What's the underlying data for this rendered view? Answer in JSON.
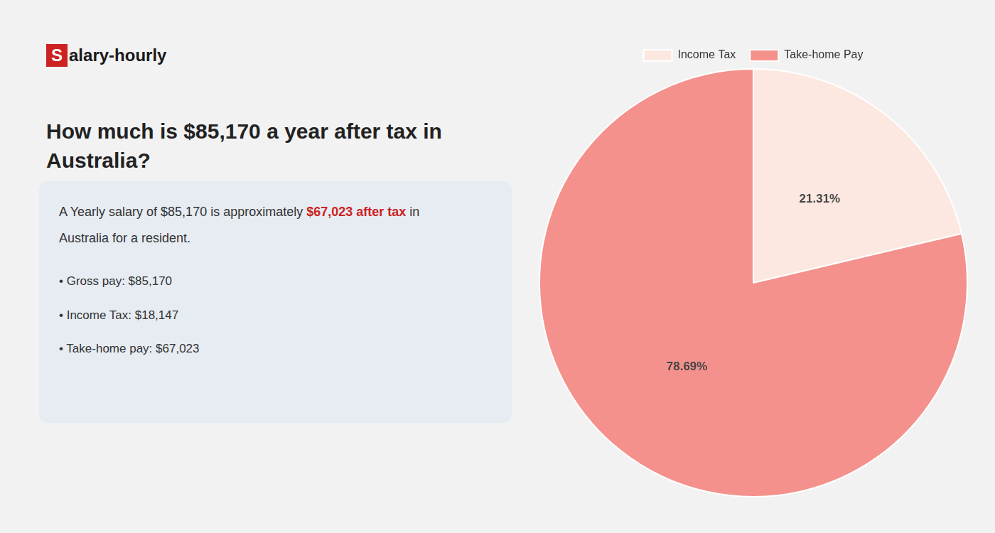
{
  "chart_data": {
    "type": "pie",
    "title": [
      "How much is $85,170 a year after tax in",
      "Australia?"
    ],
    "annotations": [
      [
        {
          "text": "S",
          "background": "#cc2222"
        },
        {
          "text": "alary-hourly"
        }
      ],
      [
        {
          "text": "A Yearly salary of $85,170 is approximately "
        },
        {
          "text": "$67,023 after tax",
          "color": "#cc2222"
        },
        {
          "text": " in"
        }
      ],
      [
        {
          "text": "Australia for a resident."
        }
      ],
      [
        {
          "text": "•  Gross pay: $85,170"
        }
      ],
      [
        {
          "text": "•  Income Tax: $18,147"
        }
      ],
      [
        {
          "text": "•  Take-home pay: $67,023"
        }
      ]
    ],
    "categories": [
      "Income Tax",
      "Take-home Pay"
    ],
    "values": [
      21.31,
      78.69
    ],
    "value_labels": [
      "21.31%",
      "78.69%"
    ],
    "colors": [
      "#fce8e0",
      "#f4918c"
    ],
    "data_labels": true,
    "legend": "top"
  }
}
